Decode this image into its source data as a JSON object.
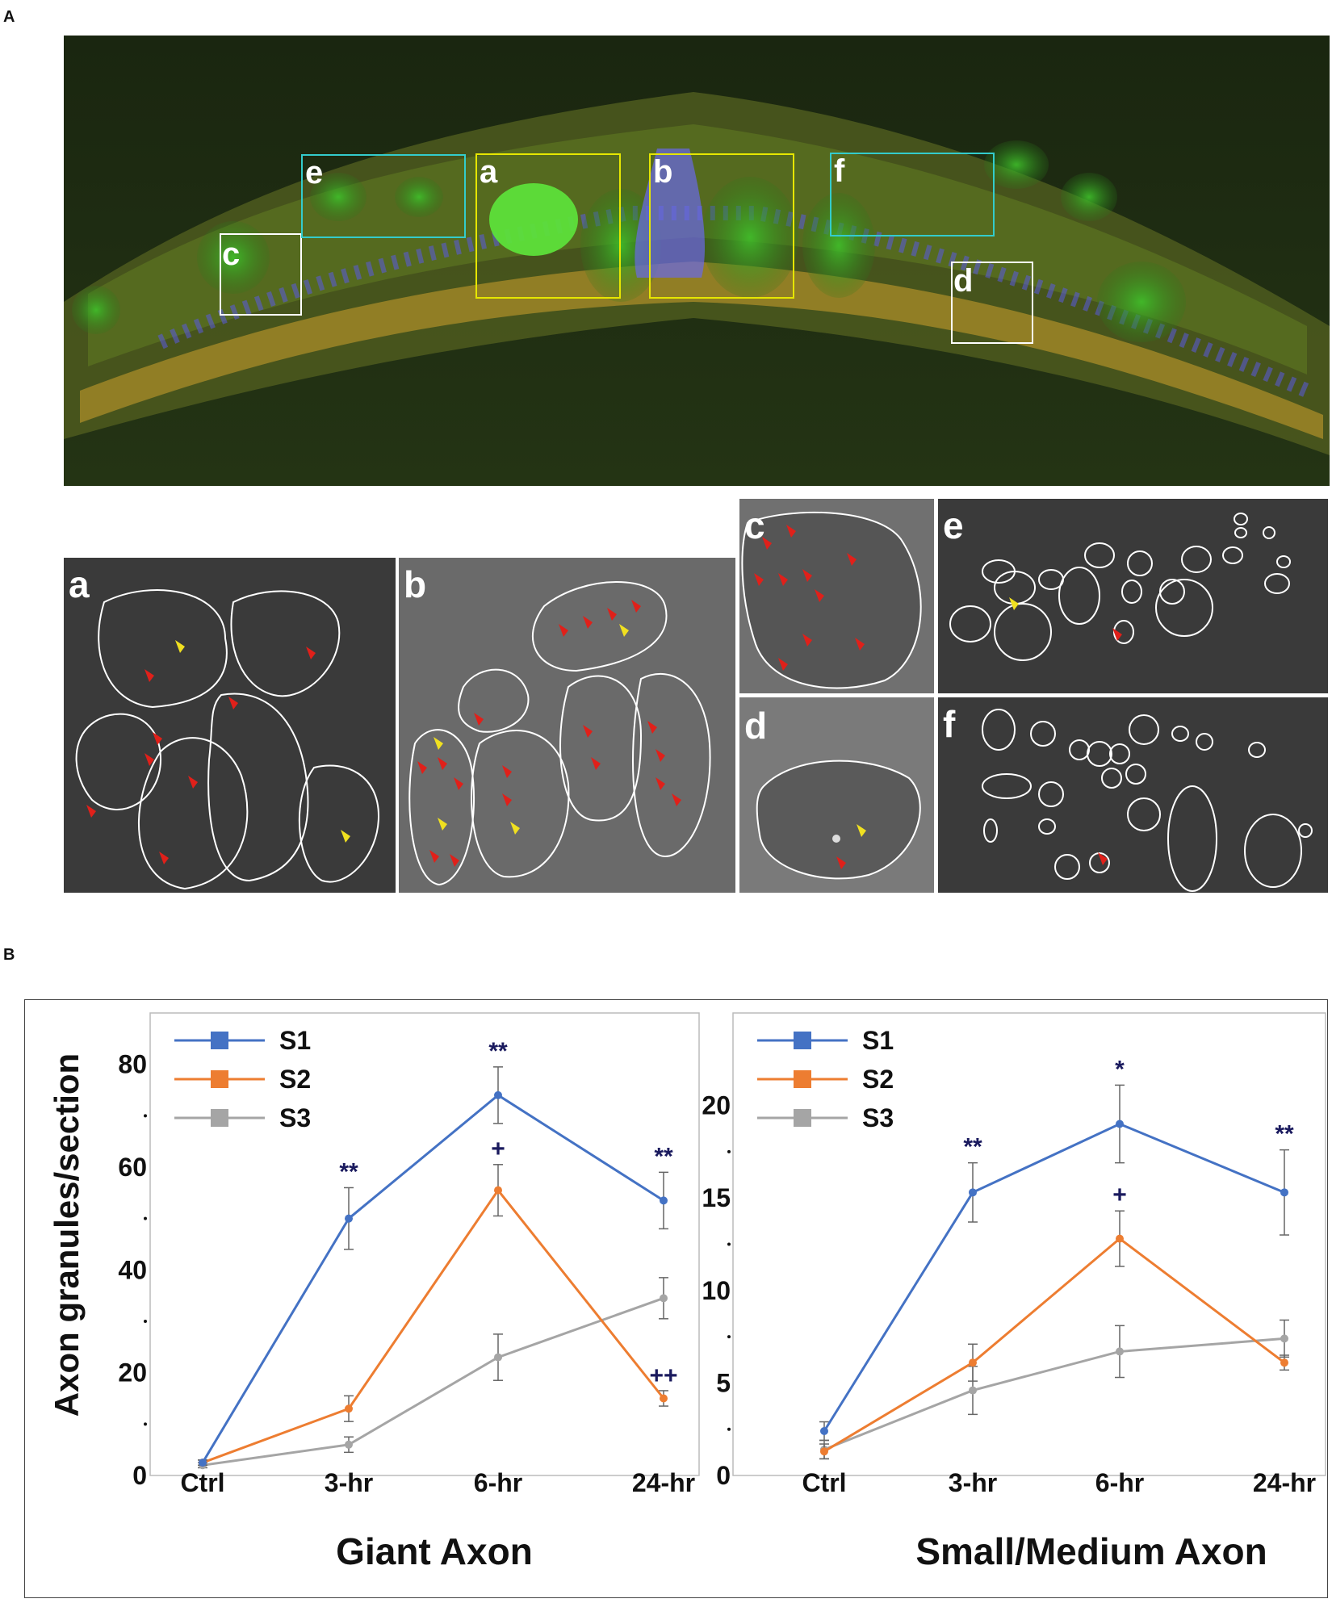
{
  "panel_labels": {
    "A": "A",
    "B": "B"
  },
  "overview": {
    "boxes": [
      {
        "label": "a",
        "color": "#e6e600"
      },
      {
        "label": "b",
        "color": "#e6e600"
      },
      {
        "label": "c",
        "color": "#ffffff"
      },
      {
        "label": "d",
        "color": "#ffffff"
      },
      {
        "label": "e",
        "color": "#33cccc"
      },
      {
        "label": "f",
        "color": "#33cccc"
      }
    ]
  },
  "insets": [
    {
      "label": "a"
    },
    {
      "label": "b"
    },
    {
      "label": "c"
    },
    {
      "label": "d"
    },
    {
      "label": "e"
    },
    {
      "label": "f"
    }
  ],
  "chart_data": [
    {
      "type": "line",
      "title": "Giant Axon",
      "ylabel": "Axon granules/section",
      "categories": [
        "Ctrl",
        "3-hr",
        "6-hr",
        "24-hr"
      ],
      "ylim": [
        0,
        90
      ],
      "yticks": [
        0,
        20,
        40,
        60,
        80
      ],
      "legend_position": "top-left",
      "series": [
        {
          "name": "S1",
          "color": "#4472c4",
          "values": [
            2.5,
            50,
            74,
            53.5
          ],
          "errors": [
            0.5,
            6,
            5.5,
            5.5
          ],
          "annotations": [
            "",
            "**",
            "**",
            "**"
          ]
        },
        {
          "name": "S2",
          "color": "#ed7d31",
          "values": [
            2.5,
            13,
            55.5,
            15
          ],
          "errors": [
            0.5,
            2.5,
            5,
            1.5
          ],
          "annotations": [
            "",
            "",
            "+",
            "++"
          ]
        },
        {
          "name": "S3",
          "color": "#a5a5a5",
          "values": [
            2,
            6,
            23,
            34.5
          ],
          "errors": [
            0.5,
            1.5,
            4.5,
            4
          ],
          "annotations": [
            "",
            "",
            "",
            ""
          ]
        }
      ]
    },
    {
      "type": "line",
      "title": "Small/Medium Axon",
      "ylabel": "",
      "categories": [
        "Ctrl",
        "3-hr",
        "6-hr",
        "24-hr"
      ],
      "ylim": [
        0,
        25
      ],
      "yticks": [
        0,
        5,
        10,
        15,
        20
      ],
      "legend_position": "top-left",
      "series": [
        {
          "name": "S1",
          "color": "#4472c4",
          "values": [
            2.4,
            15.3,
            19,
            15.3
          ],
          "errors": [
            0.5,
            1.6,
            2.1,
            2.3
          ],
          "annotations": [
            "",
            "**",
            "*",
            "**"
          ]
        },
        {
          "name": "S2",
          "color": "#ed7d31",
          "values": [
            1.3,
            6.1,
            12.8,
            6.1
          ],
          "errors": [
            0.4,
            1,
            1.5,
            0.4
          ],
          "annotations": [
            "",
            "",
            "+",
            ""
          ]
        },
        {
          "name": "S3",
          "color": "#a5a5a5",
          "values": [
            1.4,
            4.6,
            6.7,
            7.4
          ],
          "errors": [
            0.5,
            1.3,
            1.4,
            1
          ],
          "annotations": [
            "",
            "",
            "",
            ""
          ]
        }
      ]
    }
  ]
}
